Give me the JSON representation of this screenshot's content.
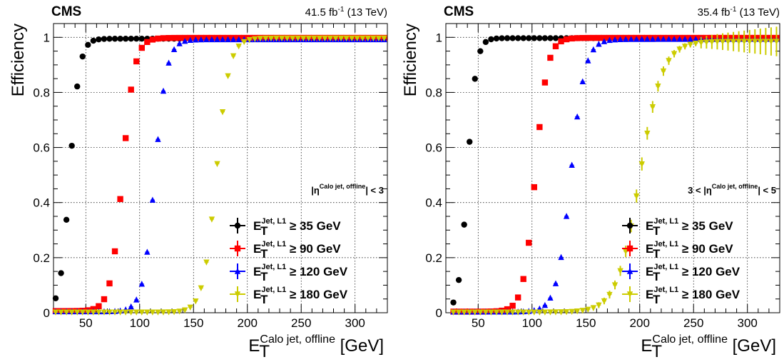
{
  "chart_data": [
    {
      "type": "scatter",
      "cms_label": "CMS",
      "lumi_label": "41.5 fb",
      "lumi_sup": "-1",
      "lumi_energy": " (13 TeV)",
      "ylabel": "Efficiency",
      "xlabel_main": "E",
      "xlabel_sub": "T",
      "xlabel_sup": "Calo jet, offline",
      "xlabel_unit": " [GeV]",
      "eta_cut": {
        "prefix": "|η",
        "sup": "Calo jet, offline",
        "suffix": "| < 3"
      },
      "xlim": [
        20,
        330
      ],
      "ylim": [
        0,
        1.05
      ],
      "xticks": [
        50,
        100,
        150,
        200,
        250,
        300
      ],
      "yticks": [
        0,
        0.2,
        0.4,
        0.6,
        0.8,
        1
      ],
      "ytick_labels": [
        "0",
        "0.2",
        "0.4",
        "0.6",
        "0.8",
        "1"
      ],
      "grid": true,
      "legend_position": "bottom-right",
      "series": [
        {
          "name_main": "E",
          "name_sub": "T",
          "name_sup": "Jet, L1",
          "name_rest": " ≥ 35 GeV",
          "color": "#000000",
          "marker": "circle",
          "thresh": 35,
          "width": 4.5,
          "floor": 0.0,
          "plateau": 0.995,
          "xstart": 22,
          "xend": 330,
          "err_scale": 0
        },
        {
          "name_main": "E",
          "name_sub": "T",
          "name_sup": "Jet, L1",
          "name_rest": " ≥ 90 GeV",
          "color": "#ff0000",
          "marker": "square",
          "thresh": 84,
          "width": 5.5,
          "floor": 0.006,
          "plateau": 0.998,
          "xstart": 22,
          "xend": 330,
          "err_scale": 0
        },
        {
          "name_main": "E",
          "name_sub": "T",
          "name_sup": "Jet, L1",
          "name_rest": " ≥ 120 GeV",
          "color": "#0000ff",
          "marker": "triangle-up",
          "thresh": 114,
          "width": 5.5,
          "floor": 0.004,
          "plateau": 0.992,
          "xstart": 22,
          "xend": 330,
          "err_scale": 0
        },
        {
          "name_main": "E",
          "name_sub": "T",
          "name_sup": "Jet, L1",
          "name_rest": " ≥ 180 GeV",
          "color": "#cccc00",
          "marker": "triangle-down",
          "thresh": 171,
          "width": 6.0,
          "floor": 0.002,
          "plateau": 0.997,
          "xstart": 22,
          "xend": 330,
          "err_scale": 0
        }
      ]
    },
    {
      "type": "scatter",
      "cms_label": "CMS",
      "lumi_label": "35.4 fb",
      "lumi_sup": "-1",
      "lumi_energy": " (13 TeV)",
      "ylabel": "Efficiency",
      "xlabel_main": "E",
      "xlabel_sub": "T",
      "xlabel_sup": "Calo jet, offline",
      "xlabel_unit": " [GeV]",
      "eta_cut": {
        "prefix": "3 < |η",
        "sup": "Calo jet, offline",
        "suffix": "| < 5"
      },
      "xlim": [
        20,
        330
      ],
      "ylim": [
        0,
        1.05
      ],
      "xticks": [
        50,
        100,
        150,
        200,
        250,
        300
      ],
      "yticks": [
        0,
        0.2,
        0.4,
        0.6,
        0.8,
        1
      ],
      "ytick_labels": [
        "0",
        "0.2",
        "0.4",
        "0.6",
        "0.8",
        "1"
      ],
      "grid": true,
      "legend_position": "bottom-right",
      "series": [
        {
          "name_main": "E",
          "name_sub": "T",
          "name_sup": "Jet, L1",
          "name_rest": " ≥ 35 GeV",
          "color": "#000000",
          "marker": "circle",
          "thresh": 40,
          "width": 4.0,
          "floor": 0.0,
          "plateau": 0.997,
          "xstart": 27,
          "xend": 330,
          "err_scale": 0
        },
        {
          "name_main": "E",
          "name_sub": "T",
          "name_sup": "Jet, L1",
          "name_rest": " ≥ 90 GeV",
          "color": "#ff0000",
          "marker": "square",
          "thresh": 103,
          "width": 5.5,
          "floor": 0.004,
          "plateau": 0.998,
          "xstart": 27,
          "xend": 330,
          "err_scale": 0
        },
        {
          "name_main": "E",
          "name_sub": "T",
          "name_sup": "Jet, L1",
          "name_rest": " ≥ 120 GeV",
          "color": "#0000ff",
          "marker": "triangle-up",
          "thresh": 136,
          "width": 6.5,
          "floor": 0.003,
          "plateau": 0.993,
          "xstart": 27,
          "xend": 330,
          "err_scale": 0
        },
        {
          "name_main": "E",
          "name_sub": "T",
          "name_sup": "Jet, L1",
          "name_rest": " ≥ 180 GeV",
          "color": "#cccc00",
          "marker": "triangle-down",
          "thresh": 200,
          "width": 10.5,
          "floor": 0.002,
          "plateau": 0.985,
          "xstart": 27,
          "xend": 330,
          "err_scale": 1
        }
      ]
    }
  ]
}
